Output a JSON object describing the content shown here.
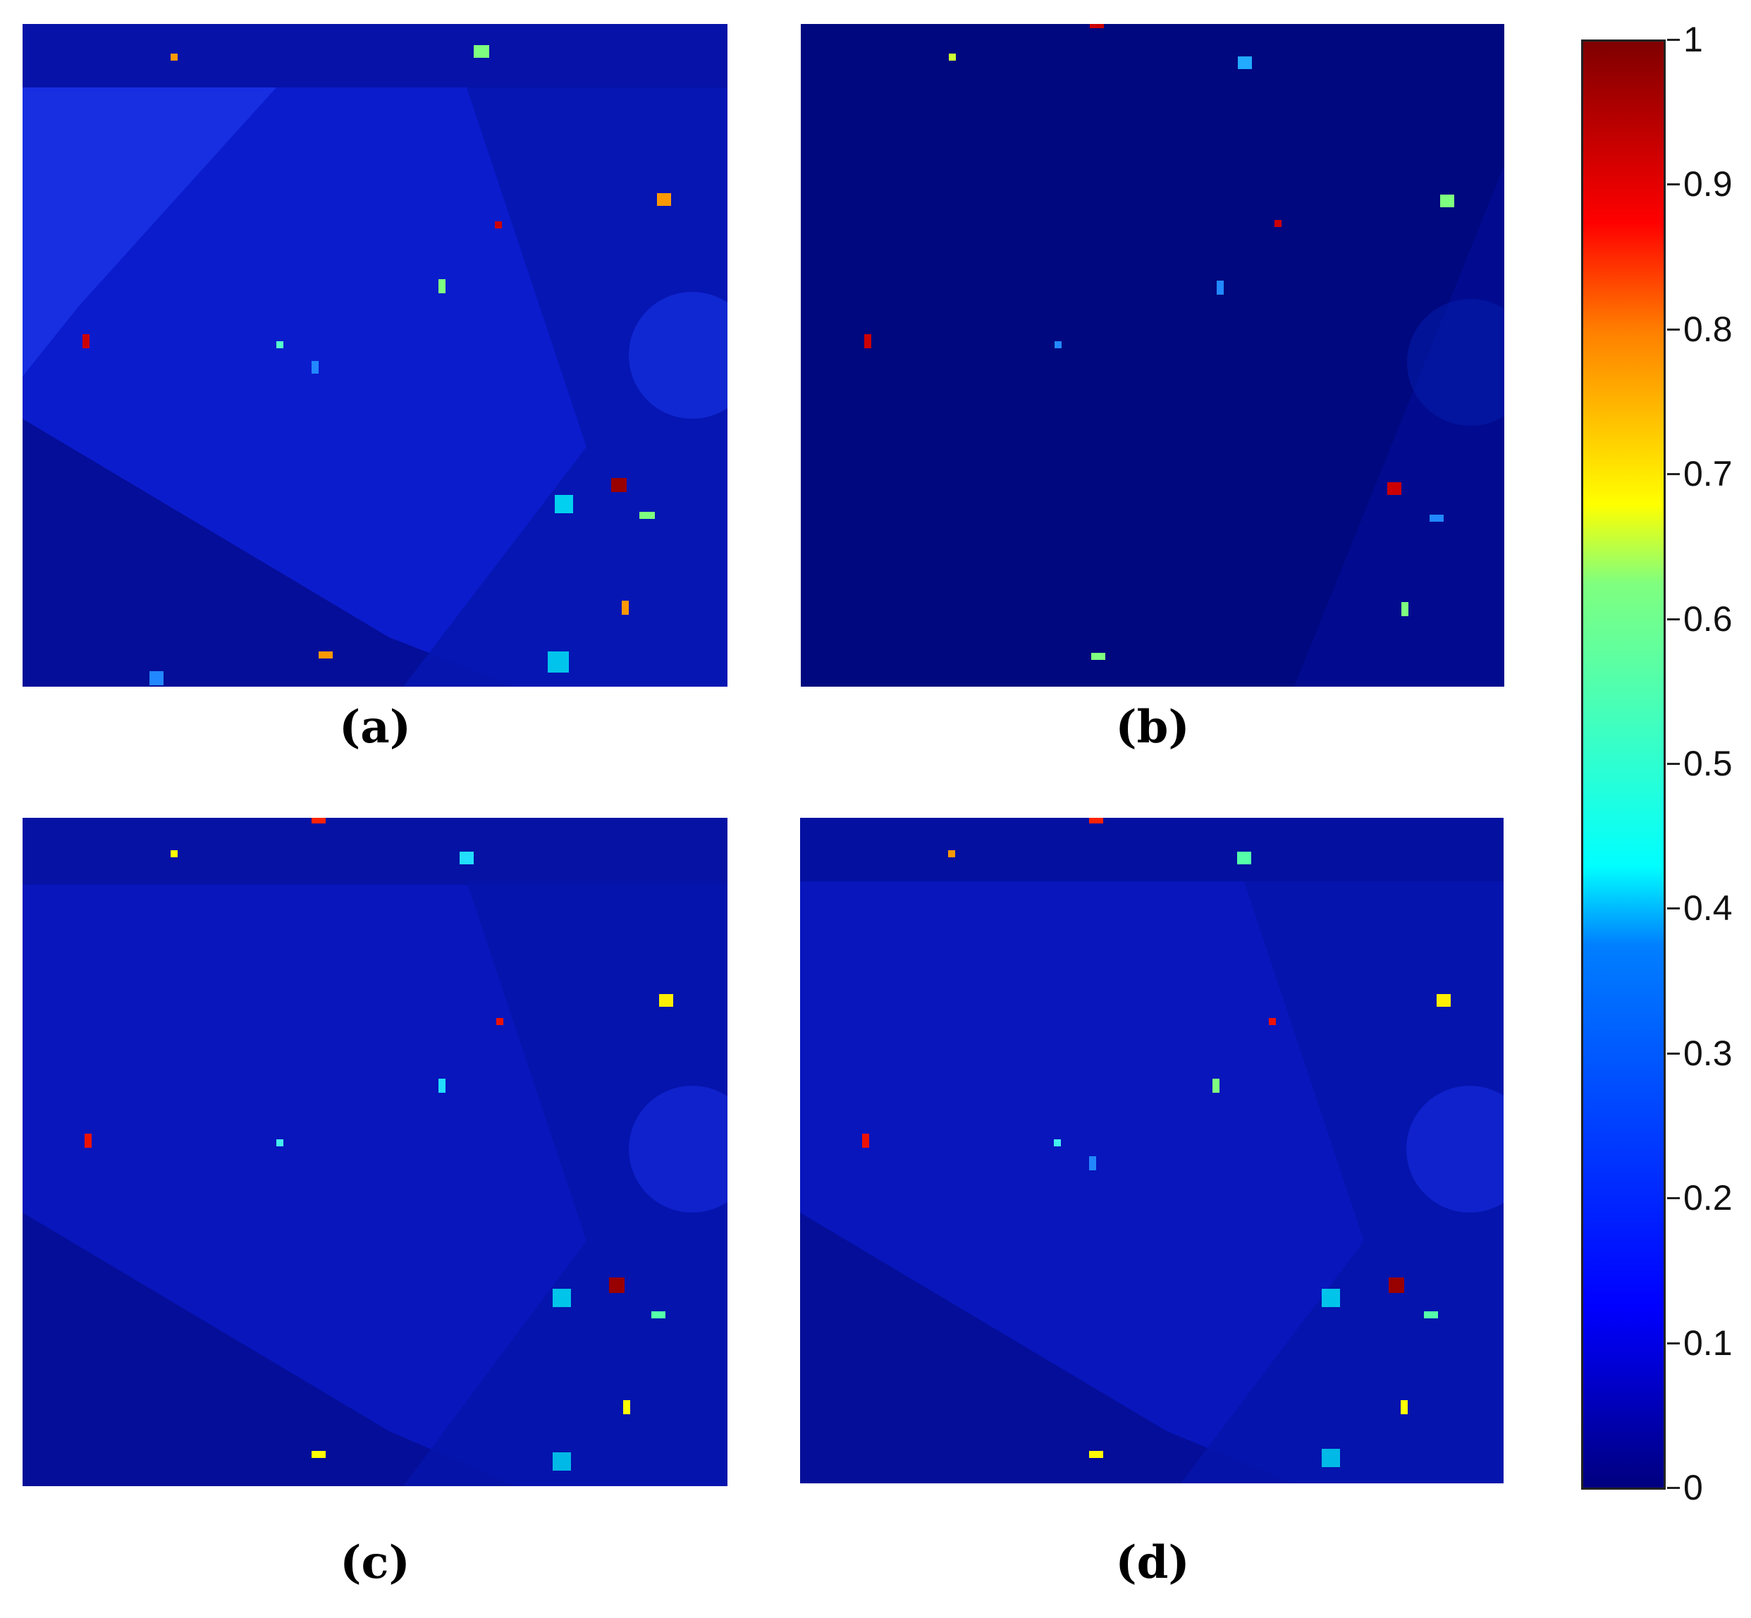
{
  "panels": [
    {
      "caption": "(a)",
      "name": "panel-a",
      "tone": "bright"
    },
    {
      "caption": "(b)",
      "name": "panel-b",
      "tone": "dark"
    },
    {
      "caption": "(c)",
      "name": "panel-c",
      "tone": "medium"
    },
    {
      "caption": "(d)",
      "name": "panel-d",
      "tone": "medium"
    }
  ],
  "colorbar": {
    "ticks": [
      "1",
      "0.9",
      "0.8",
      "0.7",
      "0.6",
      "0.5",
      "0.4",
      "0.3",
      "0.2",
      "0.1",
      "0"
    ],
    "colormap": [
      "#00007f",
      "#0000ff",
      "#007fff",
      "#00ffff",
      "#7fff7f",
      "#ffff00",
      "#ff7f00",
      "#ff0000",
      "#7f0000"
    ]
  }
}
